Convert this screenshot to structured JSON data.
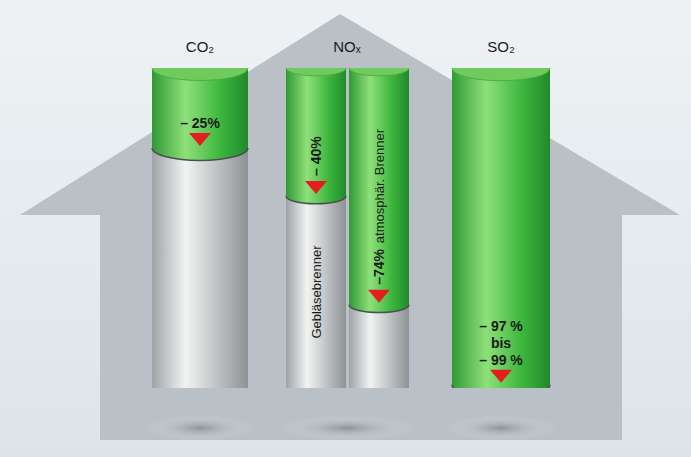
{
  "chart_data": [
    {
      "type": "bar",
      "title": "CO₂",
      "categories": [
        null
      ],
      "values": [
        -25
      ],
      "value_labels": [
        "– 25%"
      ],
      "color": "#3fb83f",
      "ylim": [
        -100,
        0
      ],
      "yticks": [],
      "tick_labels": false,
      "grid": false
    },
    {
      "type": "bar",
      "title": "NOₓ",
      "categories": [
        "Gebläsebrenner",
        "atmosphär. Brenner"
      ],
      "values": [
        -40,
        -74
      ],
      "value_labels": [
        "– 40%",
        "–74%"
      ],
      "color": "#3fb83f",
      "ylim": [
        -100,
        0
      ],
      "yticks": [],
      "tick_labels": false,
      "grid": false
    },
    {
      "type": "bar",
      "title": "SO₂",
      "categories": [
        null
      ],
      "values": [
        -99
      ],
      "value_labels": [
        "– 97 %\nbis\n– 99 %"
      ],
      "color": "#3fb83f",
      "ylim": [
        -100,
        0
      ],
      "yticks": [],
      "tick_labels": false,
      "grid": false
    }
  ]
}
